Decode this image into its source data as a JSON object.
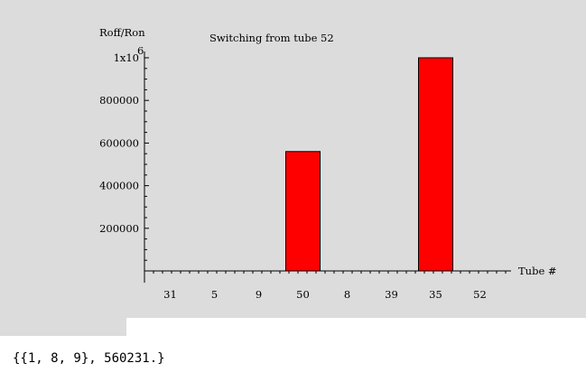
{
  "chart_data": {
    "type": "bar",
    "title": "Switching from tube 52",
    "ylabel": "Roff/Ron",
    "xlabel": "Tube #",
    "categories": [
      "31",
      "5",
      "9",
      "50",
      "8",
      "39",
      "35",
      "52"
    ],
    "values": [
      0,
      0,
      0,
      560231,
      0,
      0,
      1000000,
      0
    ],
    "ylim": [
      0,
      1050000
    ],
    "yticks": [
      200000,
      400000,
      600000,
      800000,
      1000000
    ],
    "ytick_labels": [
      "200000",
      "400000",
      "600000",
      "800000",
      "1x10"
    ],
    "ytick_top_exponent": "6",
    "grid": false,
    "legend": "none",
    "bar_color": "#ff0000",
    "background_color": "#dcdcdc"
  },
  "output": {
    "text": "{{1, 8, 9}, 560231.}"
  }
}
